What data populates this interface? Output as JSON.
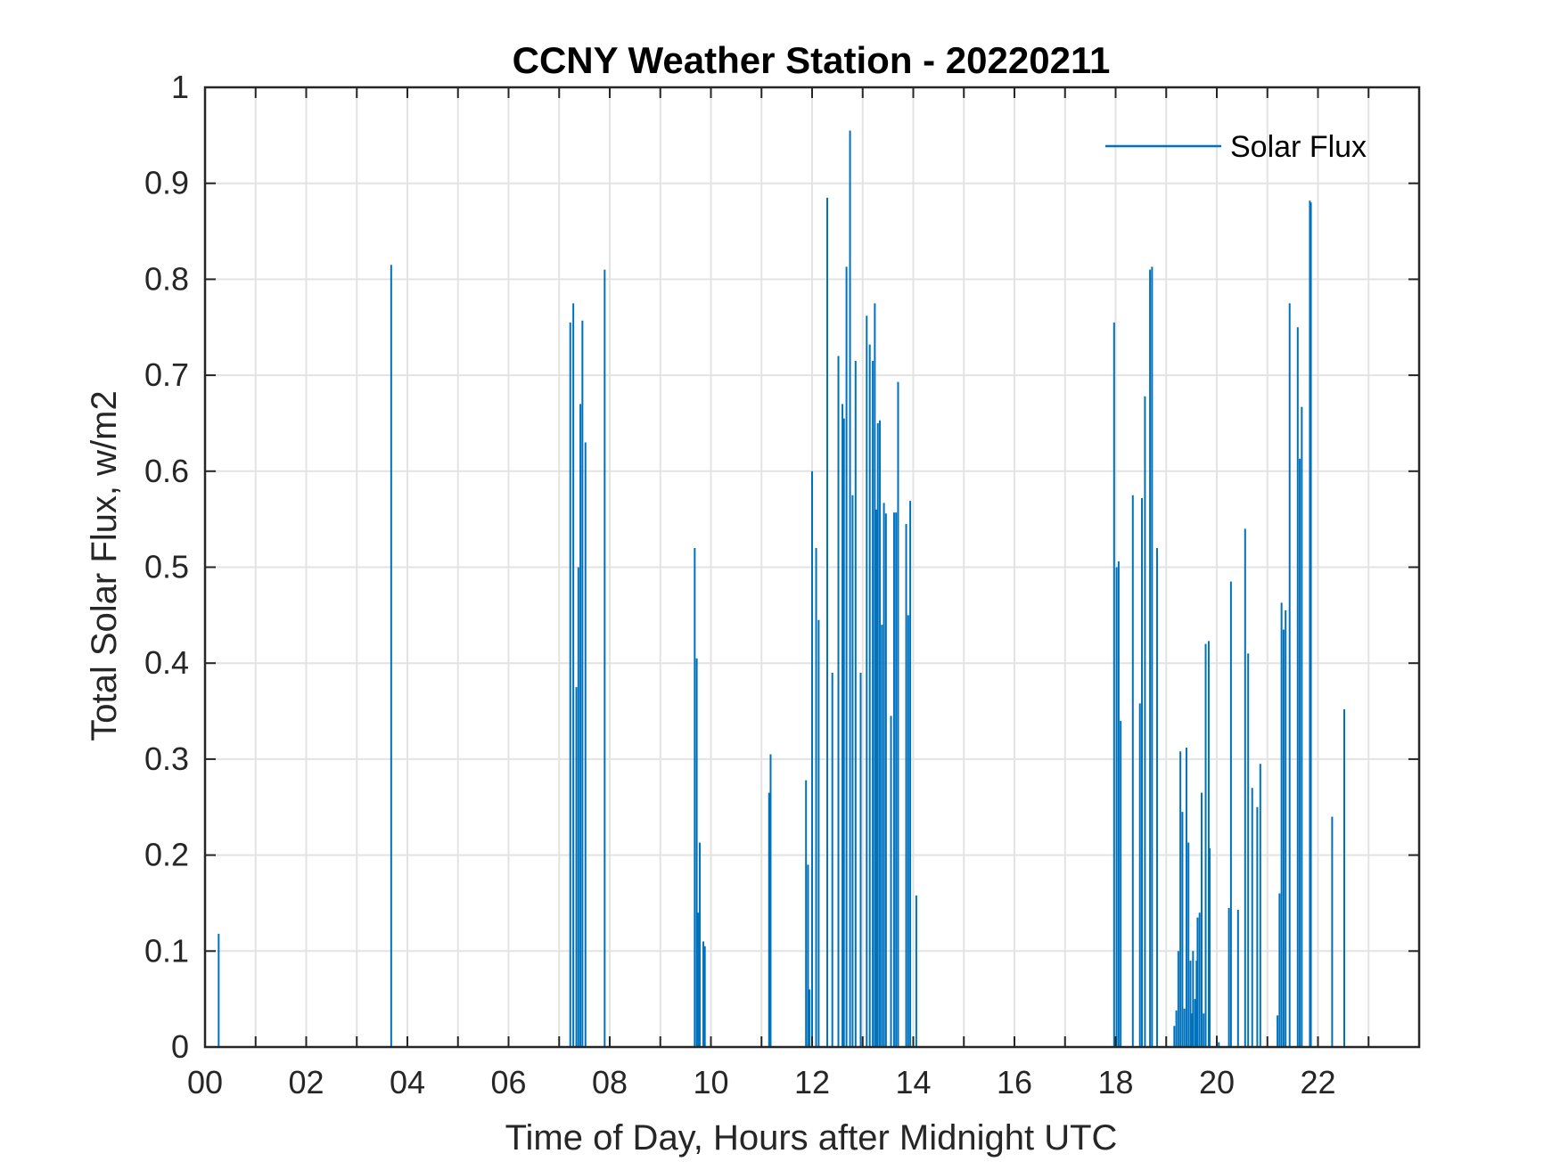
{
  "chart_data": {
    "type": "line",
    "title": "CCNY Weather Station - 20220211",
    "xlabel": "Time of Day, Hours after Midnight UTC",
    "ylabel": "Total Solar Flux, w/m2",
    "xlim": [
      0,
      24
    ],
    "ylim": [
      0,
      1
    ],
    "grid": true,
    "legend_position": "top-right",
    "x_ticks": [
      0,
      2,
      4,
      6,
      8,
      10,
      12,
      14,
      16,
      18,
      20,
      22
    ],
    "x_tick_labels": [
      "00",
      "02",
      "04",
      "06",
      "08",
      "10",
      "12",
      "14",
      "16",
      "18",
      "20",
      "22"
    ],
    "y_ticks": [
      0,
      0.1,
      0.2,
      0.3,
      0.4,
      0.5,
      0.6,
      0.7,
      0.8,
      0.9,
      1
    ],
    "y_tick_labels": [
      "0",
      "0.1",
      "0.2",
      "0.3",
      "0.4",
      "0.5",
      "0.6",
      "0.7",
      "0.8",
      "0.9",
      "1"
    ],
    "colors": {
      "series": "#0072BD",
      "axis": "#262626",
      "grid": "#e3e3e3"
    },
    "series": [
      {
        "name": "Solar Flux",
        "spikes": [
          [
            0.27,
            0.118
          ],
          [
            3.68,
            0.815
          ],
          [
            7.22,
            0.755
          ],
          [
            7.28,
            0.775
          ],
          [
            7.34,
            0.375
          ],
          [
            7.38,
            0.5
          ],
          [
            7.42,
            0.67
          ],
          [
            7.46,
            0.757
          ],
          [
            7.52,
            0.63
          ],
          [
            7.9,
            0.81
          ],
          [
            9.68,
            0.52
          ],
          [
            9.72,
            0.405
          ],
          [
            9.75,
            0.14
          ],
          [
            9.78,
            0.213
          ],
          [
            9.85,
            0.11
          ],
          [
            9.88,
            0.105
          ],
          [
            11.15,
            0.265
          ],
          [
            11.18,
            0.305
          ],
          [
            11.88,
            0.278
          ],
          [
            11.92,
            0.19
          ],
          [
            11.95,
            0.06
          ],
          [
            12.0,
            0.6
          ],
          [
            12.08,
            0.52
          ],
          [
            12.13,
            0.445
          ],
          [
            12.3,
            0.885
          ],
          [
            12.4,
            0.39
          ],
          [
            12.52,
            0.72
          ],
          [
            12.6,
            0.67
          ],
          [
            12.63,
            0.655
          ],
          [
            12.68,
            0.813
          ],
          [
            12.75,
            0.955
          ],
          [
            12.8,
            0.575
          ],
          [
            12.86,
            0.715
          ],
          [
            12.96,
            0.39
          ],
          [
            13.08,
            0.762
          ],
          [
            13.14,
            0.732
          ],
          [
            13.2,
            0.715
          ],
          [
            13.24,
            0.775
          ],
          [
            13.27,
            0.56
          ],
          [
            13.3,
            0.65
          ],
          [
            13.34,
            0.653
          ],
          [
            13.38,
            0.44
          ],
          [
            13.42,
            0.567
          ],
          [
            13.46,
            0.556
          ],
          [
            13.56,
            0.345
          ],
          [
            13.62,
            0.557
          ],
          [
            13.66,
            0.557
          ],
          [
            13.7,
            0.693
          ],
          [
            13.86,
            0.545
          ],
          [
            13.9,
            0.45
          ],
          [
            13.94,
            0.569
          ],
          [
            14.06,
            0.158
          ],
          [
            17.97,
            0.755
          ],
          [
            18.02,
            0.5
          ],
          [
            18.06,
            0.506
          ],
          [
            18.1,
            0.34
          ],
          [
            18.34,
            0.575
          ],
          [
            18.48,
            0.358
          ],
          [
            18.52,
            0.572
          ],
          [
            18.58,
            0.678
          ],
          [
            18.68,
            0.81
          ],
          [
            18.72,
            0.813
          ],
          [
            18.82,
            0.52
          ],
          [
            19.16,
            0.022
          ],
          [
            19.2,
            0.038
          ],
          [
            19.24,
            0.1
          ],
          [
            19.28,
            0.308
          ],
          [
            19.32,
            0.245
          ],
          [
            19.36,
            0.04
          ],
          [
            19.4,
            0.312
          ],
          [
            19.44,
            0.213
          ],
          [
            19.48,
            0.09
          ],
          [
            19.5,
            0.035
          ],
          [
            19.53,
            0.1
          ],
          [
            19.57,
            0.05
          ],
          [
            19.6,
            0.09
          ],
          [
            19.62,
            0.135
          ],
          [
            19.66,
            0.14
          ],
          [
            19.7,
            0.265
          ],
          [
            19.74,
            0.035
          ],
          [
            19.78,
            0.42
          ],
          [
            19.84,
            0.423
          ],
          [
            19.86,
            0.207
          ],
          [
            20.0,
            0.012
          ],
          [
            20.04,
            0.005
          ],
          [
            20.24,
            0.145
          ],
          [
            20.28,
            0.485
          ],
          [
            20.42,
            0.143
          ],
          [
            20.56,
            0.54
          ],
          [
            20.62,
            0.41
          ],
          [
            20.7,
            0.27
          ],
          [
            20.8,
            0.25
          ],
          [
            20.86,
            0.295
          ],
          [
            21.2,
            0.033
          ],
          [
            21.24,
            0.16
          ],
          [
            21.28,
            0.463
          ],
          [
            21.32,
            0.435
          ],
          [
            21.36,
            0.455
          ],
          [
            21.44,
            0.775
          ],
          [
            21.6,
            0.75
          ],
          [
            21.64,
            0.613
          ],
          [
            21.68,
            0.667
          ],
          [
            21.84,
            0.882
          ],
          [
            21.86,
            0.88
          ],
          [
            22.28,
            0.24
          ],
          [
            22.52,
            0.352
          ]
        ]
      }
    ]
  }
}
